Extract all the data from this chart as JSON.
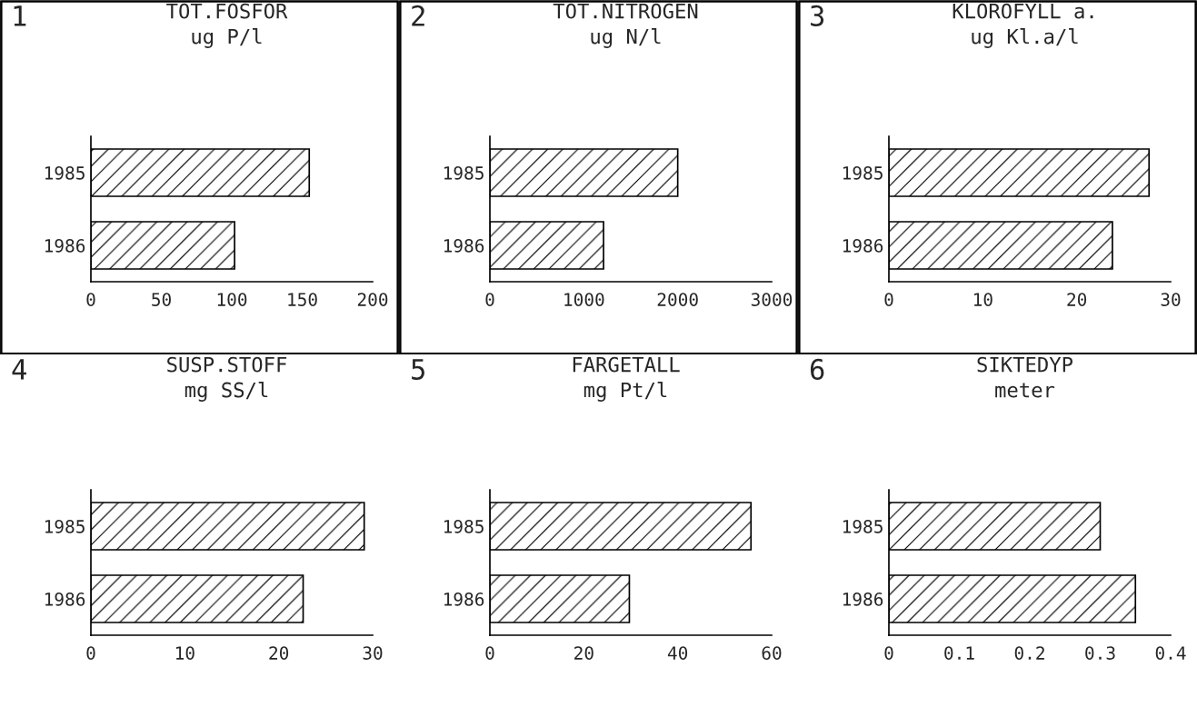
{
  "chart_data": [
    {
      "type": "bar",
      "orientation": "horizontal",
      "title": "TOT.FOSFOR",
      "subtitle": "ug P/l",
      "annotations": [
        "1"
      ],
      "categories": [
        "1985",
        "1986"
      ],
      "values": [
        155,
        102
      ],
      "xlim": [
        0,
        200
      ],
      "xticks": [
        0,
        50,
        100,
        150,
        200
      ]
    },
    {
      "type": "bar",
      "orientation": "horizontal",
      "title": "TOT.NITROGEN",
      "subtitle": "ug N/l",
      "annotations": [
        "2"
      ],
      "categories": [
        "1985",
        "1986"
      ],
      "values": [
        2000,
        1210
      ],
      "xlim": [
        0,
        3000
      ],
      "xticks": [
        0,
        1000,
        2000,
        3000
      ]
    },
    {
      "type": "bar",
      "orientation": "horizontal",
      "title": "KLOROFYLL a.",
      "subtitle": "ug Kl.a/l",
      "annotations": [
        "3"
      ],
      "categories": [
        "1985",
        "1986"
      ],
      "values": [
        27.7,
        23.8
      ],
      "xlim": [
        0,
        30
      ],
      "xticks": [
        0,
        10,
        20,
        30
      ]
    },
    {
      "type": "bar",
      "orientation": "horizontal",
      "title": "SUSP.STOFF",
      "subtitle": "mg SS/l",
      "annotations": [
        "4"
      ],
      "categories": [
        "1985",
        "1986"
      ],
      "values": [
        29.1,
        22.6
      ],
      "xlim": [
        0,
        30
      ],
      "xticks": [
        0,
        10,
        20,
        30
      ]
    },
    {
      "type": "bar",
      "orientation": "horizontal",
      "title": "FARGETALL",
      "subtitle": "mg Pt/l",
      "annotations": [
        "5"
      ],
      "categories": [
        "1985",
        "1986"
      ],
      "values": [
        55.6,
        29.7
      ],
      "xlim": [
        0,
        60
      ],
      "xticks": [
        0,
        20,
        40,
        60
      ]
    },
    {
      "type": "bar",
      "orientation": "horizontal",
      "title": "SIKTEDYP",
      "subtitle": "meter",
      "annotations": [
        "6"
      ],
      "categories": [
        "1985",
        "1986"
      ],
      "values": [
        0.3,
        0.35
      ],
      "xlim": [
        0,
        0.4
      ],
      "xticks": [
        0,
        0.1,
        0.2,
        0.3,
        0.4
      ]
    }
  ]
}
